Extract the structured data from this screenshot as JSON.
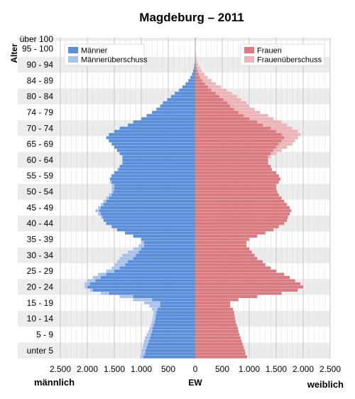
{
  "chart_data": {
    "type": "bar",
    "subtype": "population-pyramid",
    "title": "Magdeburg – 2011",
    "ylabel": "Alter",
    "xlabel": "EW",
    "left_label": "männlich",
    "right_label": "weiblich",
    "x_ticks": [
      "2.500",
      "2.000",
      "1.500",
      "1.000",
      "500",
      "0",
      "500",
      "1.000",
      "1.500",
      "2.000",
      "2.500"
    ],
    "x_tick_values": [
      -2500,
      -2000,
      -1500,
      -1000,
      -500,
      0,
      500,
      1000,
      1500,
      2000,
      2500
    ],
    "xlim": [
      -2500,
      2500
    ],
    "age_labels": [
      "unter 5",
      "5 - 9",
      "10 - 14",
      "15 - 19",
      "20 - 24",
      "25 - 29",
      "30 - 34",
      "35 - 39",
      "40 - 44",
      "45 - 49",
      "50 - 54",
      "55 - 59",
      "60 - 64",
      "65 - 69",
      "70 - 74",
      "74 - 79",
      "80 - 84",
      "84 - 89",
      "90 - 94",
      "95 - 100",
      "über 100"
    ],
    "age_label_positions": [
      2,
      7,
      12,
      17,
      22,
      27,
      32,
      37,
      42,
      47,
      52,
      57,
      62,
      67,
      72,
      77,
      82,
      87,
      92,
      97,
      100
    ],
    "legend_left": [
      {
        "name": "Männer",
        "color": "#5b8fd9"
      },
      {
        "name": "Männerüberschuss",
        "color": "#a9c3ec"
      }
    ],
    "legend_right": [
      {
        "name": "Frauen",
        "color": "#d97b80"
      },
      {
        "name": "Frauenüberschuss",
        "color": "#ecb5b8"
      }
    ],
    "legend_position": "top",
    "grid": true,
    "colors": {
      "men": "#5b8fd9",
      "men_surplus": "#a9c3ec",
      "women": "#d97b80",
      "women_surplus": "#ecb5b8",
      "stripe": "#ececec",
      "gridline": "#cfcfcf"
    },
    "ages": [
      0,
      1,
      2,
      3,
      4,
      5,
      6,
      7,
      8,
      9,
      10,
      11,
      12,
      13,
      14,
      15,
      16,
      17,
      18,
      19,
      20,
      21,
      22,
      23,
      24,
      25,
      26,
      27,
      28,
      29,
      30,
      31,
      32,
      33,
      34,
      35,
      36,
      37,
      38,
      39,
      40,
      41,
      42,
      43,
      44,
      45,
      46,
      47,
      48,
      49,
      50,
      51,
      52,
      53,
      54,
      55,
      56,
      57,
      58,
      59,
      60,
      61,
      62,
      63,
      64,
      65,
      66,
      67,
      68,
      69,
      70,
      71,
      72,
      73,
      74,
      75,
      76,
      77,
      78,
      79,
      80,
      81,
      82,
      83,
      84,
      85,
      86,
      87,
      88,
      89,
      90,
      91,
      92,
      93,
      94,
      95,
      96,
      97,
      98,
      99,
      100
    ],
    "male": [
      1020,
      1000,
      990,
      970,
      960,
      950,
      930,
      900,
      870,
      850,
      820,
      800,
      790,
      780,
      770,
      800,
      850,
      950,
      1150,
      1400,
      1750,
      1950,
      2050,
      2050,
      2000,
      1900,
      1800,
      1650,
      1550,
      1500,
      1450,
      1400,
      1350,
      1250,
      1150,
      1050,
      1000,
      1000,
      1150,
      1300,
      1450,
      1550,
      1650,
      1700,
      1750,
      1800,
      1850,
      1800,
      1750,
      1700,
      1650,
      1600,
      1550,
      1550,
      1550,
      1580,
      1580,
      1560,
      1500,
      1450,
      1400,
      1350,
      1350,
      1350,
      1400,
      1450,
      1500,
      1550,
      1600,
      1650,
      1600,
      1500,
      1400,
      1250,
      1150,
      1000,
      900,
      800,
      720,
      650,
      600,
      520,
      450,
      380,
      300,
      240,
      180,
      130,
      90,
      60,
      40,
      25,
      15,
      8,
      5,
      3,
      2,
      1,
      1,
      0,
      0
    ],
    "female": [
      960,
      930,
      920,
      900,
      880,
      860,
      840,
      820,
      800,
      790,
      770,
      750,
      740,
      730,
      720,
      700,
      650,
      650,
      800,
      1150,
      1600,
      1900,
      2000,
      1950,
      1850,
      1750,
      1650,
      1500,
      1400,
      1300,
      1250,
      1150,
      1100,
      1050,
      1000,
      950,
      950,
      1000,
      1150,
      1300,
      1450,
      1550,
      1650,
      1700,
      1720,
      1750,
      1780,
      1750,
      1700,
      1650,
      1600,
      1550,
      1520,
      1500,
      1500,
      1550,
      1580,
      1550,
      1500,
      1420,
      1400,
      1350,
      1350,
      1400,
      1500,
      1600,
      1700,
      1800,
      1850,
      1900,
      1950,
      1900,
      1800,
      1700,
      1600,
      1450,
      1350,
      1200,
      1100,
      1000,
      950,
      850,
      780,
      680,
      580,
      480,
      380,
      300,
      230,
      170,
      120,
      85,
      55,
      35,
      22,
      15,
      9,
      5,
      3,
      1,
      1
    ]
  }
}
